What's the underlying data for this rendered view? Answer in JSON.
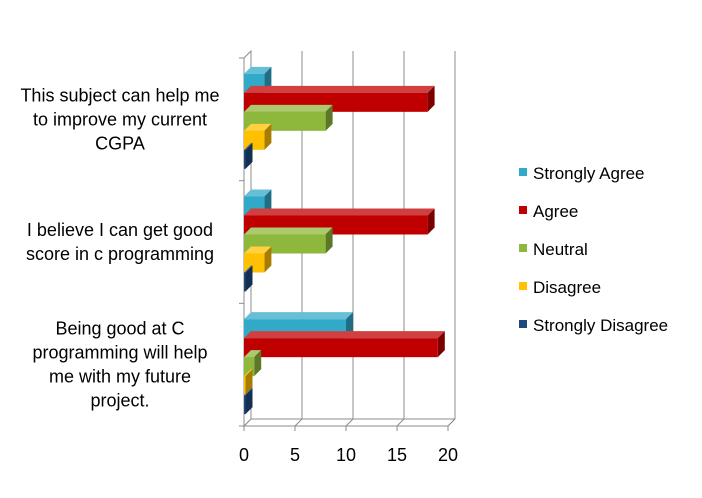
{
  "chart_data": {
    "type": "bar",
    "orientation": "horizontal",
    "style": "3d-clustered",
    "categories": [
      "This subject can help me to improve my current CGPA",
      "I believe I can get good score in c programming",
      "Being good at C programming will help me with my future project."
    ],
    "category_lines": [
      [
        "This subject can help me",
        "to improve my current",
        "CGPA"
      ],
      [
        "I believe I can get good",
        "score in c programming"
      ],
      [
        "Being good at C",
        "programming will help",
        "me with my future",
        "project."
      ]
    ],
    "series": [
      {
        "name": "Strongly Agree",
        "color": "#31A9C9",
        "values": [
          2,
          2,
          10
        ]
      },
      {
        "name": "Agree",
        "color": "#C00000",
        "values": [
          18,
          18,
          19
        ]
      },
      {
        "name": "Neutral",
        "color": "#8DB83C",
        "values": [
          8,
          8,
          1
        ]
      },
      {
        "name": "Disagree",
        "color": "#FFC000",
        "values": [
          2,
          2,
          0
        ]
      },
      {
        "name": "Strongly Disagree",
        "color": "#1F497D",
        "values": [
          0,
          0,
          0
        ]
      }
    ],
    "xlim": [
      0,
      20
    ],
    "xticks": [
      "0",
      "5",
      "10",
      "15",
      "20"
    ],
    "grid": true,
    "legend_position": "right"
  }
}
